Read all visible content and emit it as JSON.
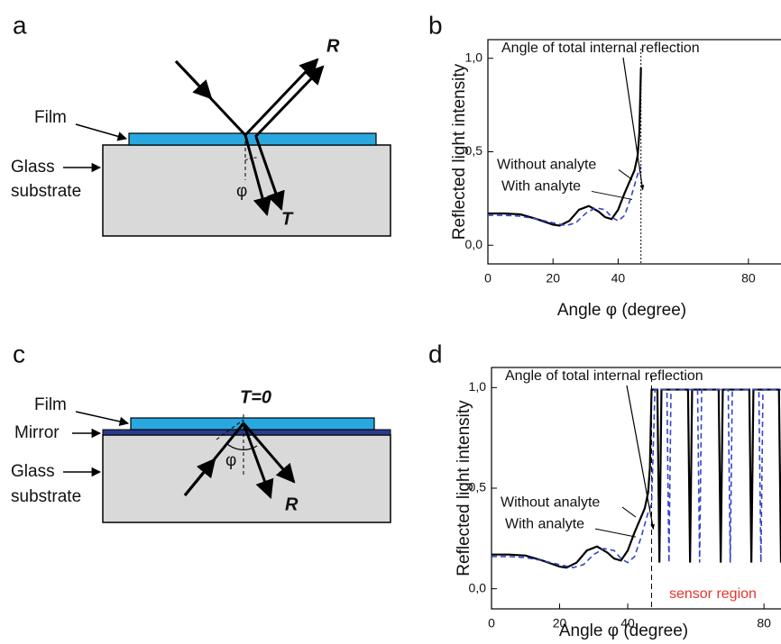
{
  "diagrams": [
    {
      "panel_label": "a",
      "film": "Film",
      "substrate": [
        "Glass",
        "substrate"
      ],
      "reflected": "R",
      "transmitted": "T",
      "angle": "φ"
    },
    {
      "panel_label": "c",
      "film": "Film",
      "mirror": "Mirror",
      "substrate": [
        "Glass",
        "substrate"
      ],
      "transmitted": "T=0",
      "reflected": "R",
      "angle": "φ"
    }
  ],
  "chart_data": [
    {
      "type": "line",
      "panel_label": "b",
      "annotation": "Angle of total internal reflection",
      "xlabel": "Angle φ (degree)",
      "ylabel": "Reflected light intensity",
      "xlim": [
        0,
        90
      ],
      "ylim": [
        -0.1,
        1.1
      ],
      "xticks": [
        0,
        20,
        40,
        80
      ],
      "yticks": [
        {
          "value": 0,
          "label": "0,0"
        },
        {
          "value": 0.5,
          "label": "0,5"
        },
        {
          "value": 1,
          "label": "1,0"
        }
      ],
      "marker_x": 47,
      "series": [
        {
          "name": "Without analyte",
          "color": "#000000",
          "dashed": false,
          "x": [
            0,
            5,
            10,
            15,
            20,
            22,
            25,
            28,
            31,
            34,
            36,
            38,
            40,
            42,
            44,
            45,
            46,
            46.5,
            47
          ],
          "values": [
            0.17,
            0.17,
            0.165,
            0.14,
            0.11,
            0.105,
            0.13,
            0.19,
            0.21,
            0.18,
            0.15,
            0.14,
            0.19,
            0.28,
            0.36,
            0.4,
            0.48,
            0.6,
            0.95
          ]
        },
        {
          "name": "With analyte",
          "color": "#3344cc",
          "dashed": true,
          "x": [
            0,
            5,
            10,
            15,
            20,
            24,
            27,
            30,
            33,
            36,
            38,
            40,
            42,
            44,
            46,
            47
          ],
          "values": [
            0.16,
            0.16,
            0.155,
            0.14,
            0.12,
            0.105,
            0.12,
            0.17,
            0.2,
            0.19,
            0.15,
            0.13,
            0.16,
            0.26,
            0.38,
            0.42
          ]
        }
      ]
    },
    {
      "type": "line",
      "panel_label": "d",
      "annotation": "Angle of total internal reflection",
      "xlabel": "Angle φ (degree)",
      "ylabel": "Reflected light intensity",
      "region_label": "sensor region",
      "xlim": [
        0,
        85
      ],
      "ylim": [
        -0.1,
        1.1
      ],
      "xticks": [
        0,
        20,
        40,
        80
      ],
      "yticks": [
        {
          "value": 0,
          "label": "0,0"
        },
        {
          "value": 0.5,
          "label": "0,5"
        },
        {
          "value": 1,
          "label": "1,0"
        }
      ],
      "marker_x": 47,
      "series": [
        {
          "name": "Without analyte",
          "color": "#000000",
          "dashed": false,
          "x": [
            0,
            5,
            10,
            15,
            20,
            22,
            25,
            28,
            31,
            34,
            36,
            38,
            40,
            42,
            44,
            45,
            46,
            46.5,
            47,
            48.7,
            49.3,
            49.9,
            57.7,
            58.3,
            58.9,
            66.7,
            67.3,
            67.9,
            75.7,
            76.3,
            76.9,
            84.4,
            85
          ],
          "values": [
            0.17,
            0.17,
            0.165,
            0.14,
            0.11,
            0.105,
            0.13,
            0.19,
            0.21,
            0.18,
            0.15,
            0.14,
            0.19,
            0.28,
            0.36,
            0.4,
            0.48,
            0.6,
            0.99,
            0.99,
            0.13,
            0.99,
            0.99,
            0.13,
            0.99,
            0.99,
            0.13,
            0.99,
            0.99,
            0.13,
            0.99,
            0.99,
            0.13
          ]
        },
        {
          "name": "With analyte",
          "color": "#3344cc",
          "dashed": true,
          "x": [
            0,
            5,
            10,
            15,
            20,
            24,
            27,
            30,
            33,
            36,
            38,
            40,
            42,
            44,
            46,
            47,
            48,
            51.5,
            52.1,
            52.7,
            60.5,
            61.1,
            61.7,
            69.5,
            70.1,
            70.7,
            78.5,
            79.1,
            79.7,
            85
          ],
          "values": [
            0.16,
            0.16,
            0.155,
            0.14,
            0.12,
            0.105,
            0.12,
            0.17,
            0.2,
            0.19,
            0.15,
            0.13,
            0.16,
            0.26,
            0.38,
            0.42,
            0.99,
            0.99,
            0.13,
            0.99,
            0.99,
            0.13,
            0.99,
            0.99,
            0.13,
            0.99,
            0.99,
            0.13,
            0.99,
            0.99
          ]
        }
      ]
    }
  ]
}
